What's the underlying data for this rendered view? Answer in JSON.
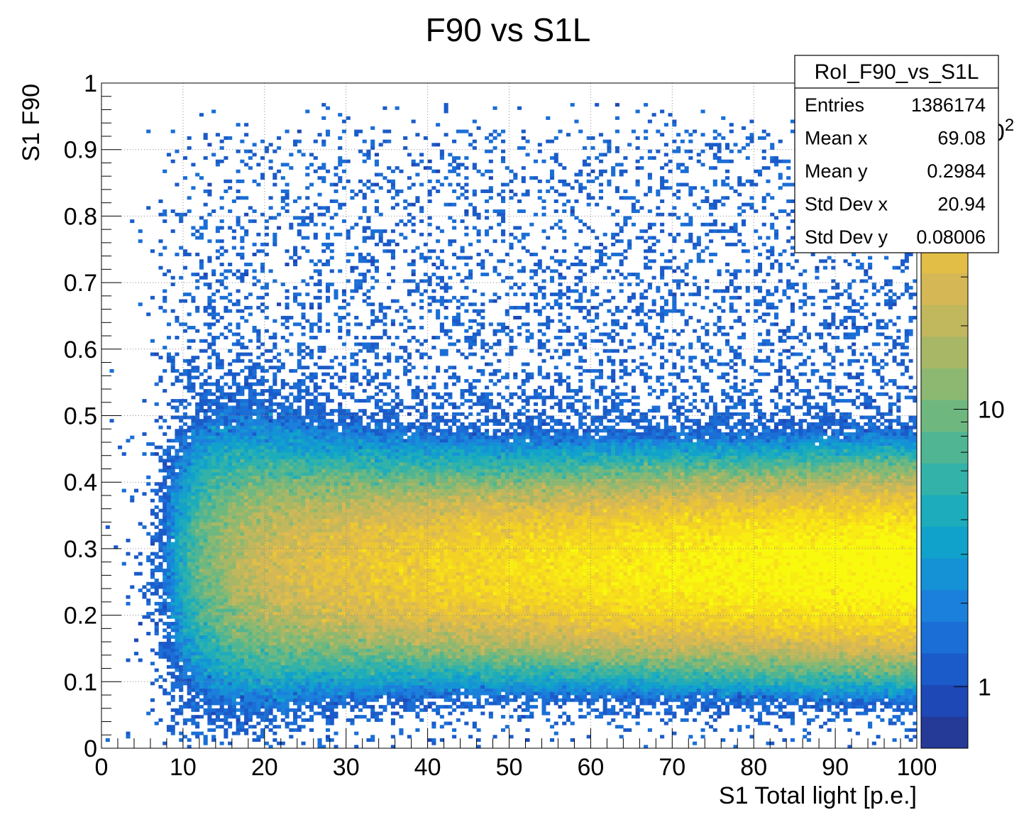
{
  "chart_data": {
    "type": "heatmap",
    "title": "F90 vs S1L",
    "xlabel": "S1 Total light [p.e.]",
    "ylabel": "S1 F90",
    "xlim": [
      0,
      100
    ],
    "ylim": [
      0,
      1
    ],
    "x_tick_labels": [
      "0",
      "10",
      "20",
      "30",
      "40",
      "50",
      "60",
      "70",
      "80",
      "90",
      "100"
    ],
    "y_tick_labels": [
      "0",
      "0.1",
      "0.2",
      "0.3",
      "0.4",
      "0.5",
      "0.6",
      "0.7",
      "0.8",
      "0.9",
      "1"
    ],
    "grid": true,
    "z_scale": "log",
    "z_range": [
      0.6,
      150
    ],
    "colorbar_tick_labels": [
      {
        "value": 1,
        "label": "1"
      },
      {
        "value": 10,
        "label": "10"
      },
      {
        "value": 100,
        "label": "10",
        "exponent": "2"
      }
    ],
    "palette": [
      "#253a97",
      "#1d48b5",
      "#1b5bc9",
      "#1a6ed6",
      "#1b80db",
      "#1592d6",
      "#11a2cb",
      "#1cacbc",
      "#32b2a8",
      "#4fb593",
      "#6eb880",
      "#8cb871",
      "#a8b765",
      "#c1b75c",
      "#d5b855",
      "#e2be47",
      "#ecc734",
      "#f3d224",
      "#f7df1a",
      "#f9ec12",
      "#f9f90e"
    ],
    "distribution": {
      "description": "band centred near F90 0.27 spanning 0.12-0.45, intensity rising with S1; sparse halo up to 0.95",
      "x_bin_width": 0.5,
      "y_bin_width": 0.005,
      "core_f90_center": 0.27,
      "core_f90_sigma": 0.065,
      "max_bin_content": 150
    },
    "stats_box": {
      "name": "RoI_F90_vs_S1L",
      "rows": [
        {
          "label": "Entries",
          "value": "1386174"
        },
        {
          "label": "Mean x",
          "value": "69.08"
        },
        {
          "label": "Mean y",
          "value": "0.2984"
        },
        {
          "label": "Std Dev x",
          "value": "20.94"
        },
        {
          "label": "Std Dev y",
          "value": "0.08006"
        }
      ]
    }
  }
}
